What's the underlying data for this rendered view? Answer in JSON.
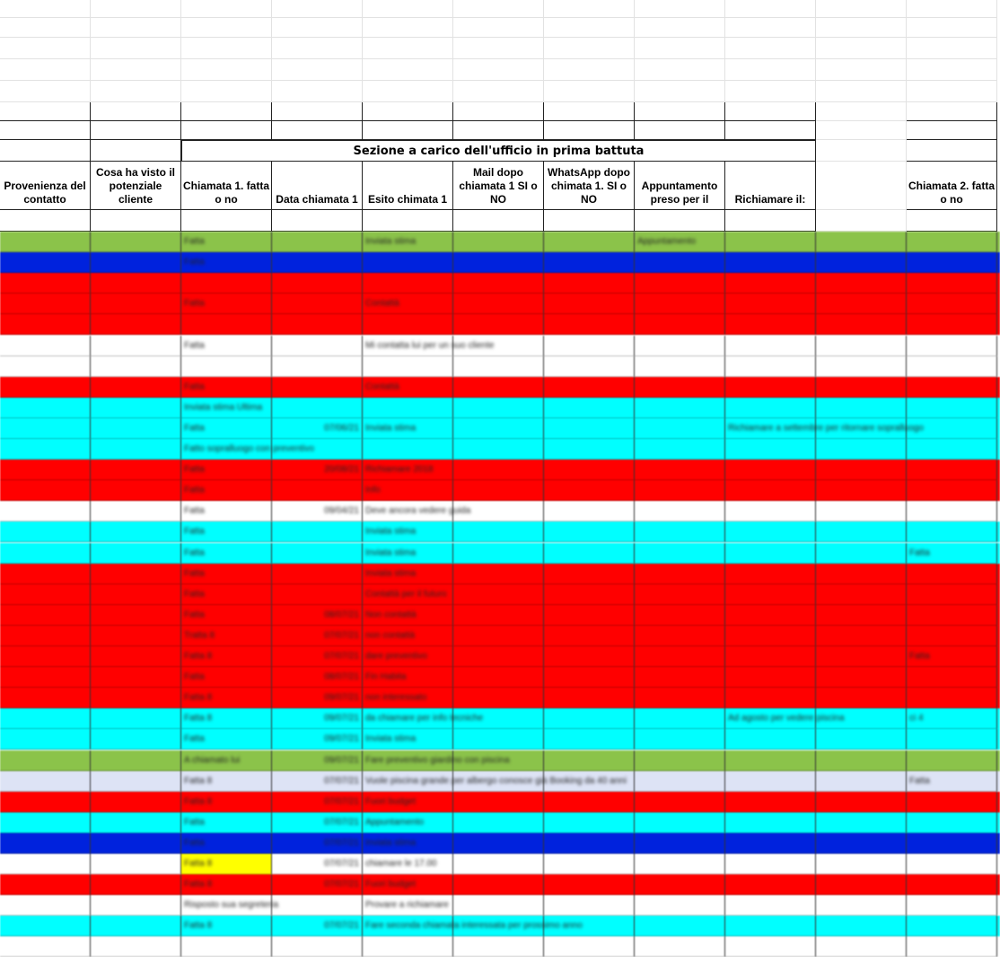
{
  "section_title": "Sezione a carico dell'ufficio in prima battuta",
  "headers": [
    "Provenienza del contatto",
    "Cosa ha visto il potenziale cliente",
    "Chiamata 1. fatta o no",
    "Data chiamata 1",
    "Esito chimata 1",
    "Mail dopo chiamata 1 SI o NO",
    "WhatsApp dopo chimata 1. SI o NO",
    "Appuntamento preso per il",
    "Richiamare il:",
    "",
    "Chiamata 2. fatta o no"
  ],
  "colors": {
    "green": "#8bc34a",
    "blue": "#0022dd",
    "red": "#ff0000",
    "white": "#ffffff",
    "cyan": "#00ffff",
    "lavender": "#dde3f5",
    "yellow": "#ffff00"
  },
  "rows": [
    {
      "color": "green",
      "cells": [
        "",
        "",
        "Fatta",
        "",
        "Inviata stima",
        "",
        "",
        "Appuntamento",
        "",
        "",
        ""
      ]
    },
    {
      "color": "blue",
      "cells": [
        "",
        "",
        "Fatta",
        "",
        "",
        "",
        "",
        "",
        "",
        "",
        ""
      ]
    },
    {
      "color": "red",
      "cells": [
        "",
        "",
        "",
        "",
        "",
        "",
        "",
        "",
        "",
        "",
        ""
      ]
    },
    {
      "color": "red",
      "cells": [
        "",
        "",
        "Fatta",
        "",
        "Contattà",
        "",
        "",
        "",
        "",
        "",
        ""
      ]
    },
    {
      "color": "red",
      "cells": [
        "",
        "",
        "",
        "",
        "",
        "",
        "",
        "",
        "",
        "",
        ""
      ]
    },
    {
      "color": "white",
      "cells": [
        "",
        "",
        "Fatta",
        "",
        "Mi contatta lui per un suo cliente",
        "",
        "",
        "",
        "",
        "",
        ""
      ]
    },
    {
      "color": "white",
      "cells": [
        "",
        "",
        "",
        "",
        "",
        "",
        "",
        "",
        "",
        "",
        ""
      ]
    },
    {
      "color": "red",
      "cells": [
        "",
        "",
        "Fatta",
        "",
        "Contattà",
        "",
        "",
        "",
        "",
        "",
        ""
      ]
    },
    {
      "color": "cyan",
      "cells": [
        "",
        "",
        "Inviata stima Ultima",
        "",
        "",
        "",
        "",
        "",
        "",
        "",
        ""
      ]
    },
    {
      "color": "cyan",
      "cells": [
        "",
        "",
        "Fatta",
        "07/06/21",
        "Inviata stima",
        "",
        "",
        "",
        "Richiamare a settembre per ritornare sopralluogo",
        "",
        ""
      ]
    },
    {
      "color": "cyan",
      "cells": [
        "",
        "",
        "Fatto sopralluogo con preventivo",
        "",
        "",
        "",
        "",
        "",
        "",
        "",
        ""
      ]
    },
    {
      "color": "red",
      "cells": [
        "",
        "",
        "Fatta",
        "20/08/21",
        "Richiamare 2018",
        "",
        "",
        "",
        "",
        "",
        ""
      ]
    },
    {
      "color": "red",
      "cells": [
        "",
        "",
        "Fatta",
        "",
        "Info",
        "",
        "",
        "",
        "",
        "",
        ""
      ]
    },
    {
      "color": "white",
      "cells": [
        "",
        "",
        "Fatta",
        "09/04/21",
        "Deve ancora vedere guida",
        "",
        "",
        "",
        "",
        "",
        ""
      ]
    },
    {
      "color": "cyan",
      "cells": [
        "",
        "",
        "Fatta",
        "",
        "Inviata stima",
        "",
        "",
        "",
        "",
        "",
        ""
      ]
    },
    {
      "color": "cyan",
      "cells": [
        "",
        "",
        "Fatta",
        "",
        "Inviata stima",
        "",
        "",
        "",
        "",
        "",
        "Fatta"
      ]
    },
    {
      "color": "red",
      "cells": [
        "",
        "",
        "Fatta",
        "",
        "Inviata stima",
        "",
        "",
        "",
        "",
        "",
        ""
      ]
    },
    {
      "color": "red",
      "cells": [
        "",
        "",
        "Fatta",
        "",
        "Contattà per il futuro",
        "",
        "",
        "",
        "",
        "",
        ""
      ]
    },
    {
      "color": "red",
      "cells": [
        "",
        "",
        "Fatta",
        "08/07/21",
        "Non contattà",
        "",
        "",
        "",
        "",
        "",
        ""
      ]
    },
    {
      "color": "red",
      "cells": [
        "",
        "",
        "Tratta 8",
        "07/07/21",
        "non contattà",
        "",
        "",
        "",
        "",
        "",
        ""
      ]
    },
    {
      "color": "red",
      "cells": [
        "",
        "",
        "Fatta 8",
        "07/07/21",
        "dare preventivo",
        "",
        "",
        "",
        "",
        "",
        "Fatta"
      ]
    },
    {
      "color": "red",
      "cells": [
        "",
        "",
        "Fatta",
        "08/07/21",
        "Fin Habita",
        "",
        "",
        "",
        "",
        "",
        ""
      ]
    },
    {
      "color": "red",
      "cells": [
        "",
        "",
        "Fatta 8",
        "09/07/21",
        "non interessato",
        "",
        "",
        "",
        "",
        "",
        ""
      ]
    },
    {
      "color": "cyan",
      "cells": [
        "",
        "",
        "Fatta 8",
        "09/07/21",
        "da chiamare per info tecniche",
        "",
        "",
        "",
        "Ad agosto per vedere piscina",
        "",
        "ci 4"
      ]
    },
    {
      "color": "cyan",
      "cells": [
        "",
        "",
        "Fatta",
        "09/07/21",
        "Inviata stima",
        "",
        "",
        "",
        "",
        "",
        ""
      ]
    },
    {
      "color": "green",
      "cells": [
        "",
        "",
        "A chiamato lui",
        "09/07/21",
        "Fare preventivo giardino con piscina",
        "",
        "",
        "",
        "",
        "",
        ""
      ]
    },
    {
      "color": "lavender",
      "cells": [
        "",
        "",
        "Fatta 8",
        "07/07/21",
        "Vuole piscina grande per albergo conosce già Booking da 40 anni",
        "",
        "",
        "",
        "",
        "",
        "Fatta"
      ]
    },
    {
      "color": "red",
      "cells": [
        "",
        "",
        "Fatta 8",
        "07/07/21",
        "Fuori budget",
        "",
        "",
        "",
        "",
        "",
        ""
      ]
    },
    {
      "color": "cyan",
      "cells": [
        "",
        "",
        "Fatta",
        "07/07/21",
        "Appuntamento",
        "",
        "",
        "",
        "",
        "",
        ""
      ]
    },
    {
      "color": "blue",
      "cells": [
        "",
        "",
        "Fatta",
        "07/07/21",
        "Inviata stima",
        "",
        "",
        "",
        "",
        "",
        ""
      ]
    },
    {
      "color": "white",
      "cells": [
        "",
        "",
        "Fatta 8",
        "07/07/21",
        "chiamare le 17.00",
        "",
        "",
        "",
        "",
        "",
        ""
      ],
      "highlight": {
        "index": 2,
        "color": "yellow"
      }
    },
    {
      "color": "red",
      "cells": [
        "",
        "",
        "Fatta 8",
        "07/07/21",
        "Fuori budget",
        "",
        "",
        "",
        "",
        "",
        ""
      ]
    },
    {
      "color": "white",
      "cells": [
        "",
        "",
        "Risposto sua segreteria",
        "",
        "Provare a richiamare",
        "",
        "",
        "",
        "",
        "",
        ""
      ]
    },
    {
      "color": "cyan",
      "cells": [
        "",
        "",
        "Fatta 8",
        "07/07/21",
        "Fare seconda chiamata interessata per prossimo anno",
        "",
        "",
        "",
        "",
        "",
        ""
      ]
    },
    {
      "color": "white",
      "cells": [
        "",
        "",
        "",
        "",
        "",
        "",
        "",
        "",
        "",
        "",
        ""
      ]
    }
  ]
}
